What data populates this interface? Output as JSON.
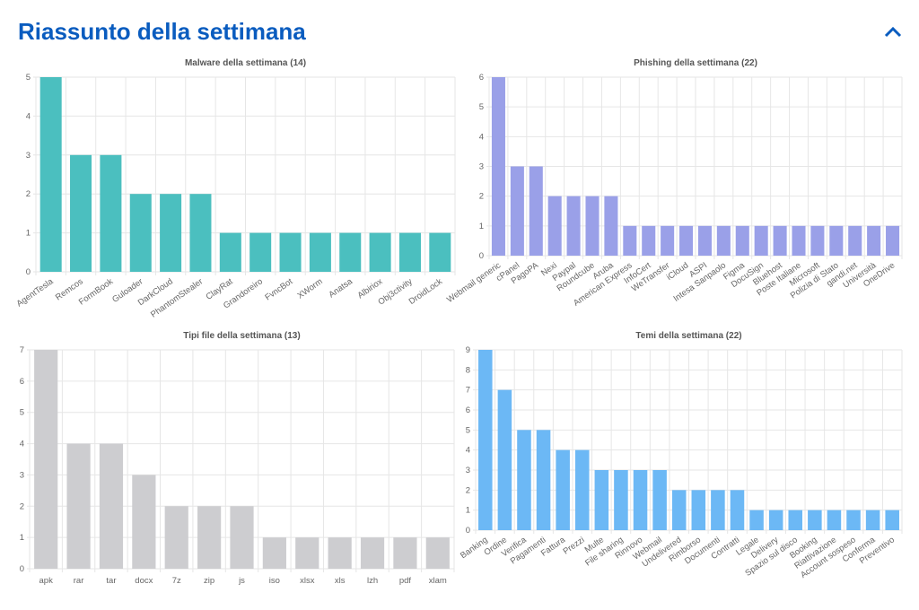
{
  "header": {
    "title": "Riassunto della settimana"
  },
  "chart_data": [
    {
      "type": "bar",
      "title": "Malware della settimana (14)",
      "color": "#4bbfbf",
      "categories": [
        "AgentTesla",
        "Remcos",
        "FormBook",
        "Guloader",
        "DarkCloud",
        "PhantomStealer",
        "ClayRat",
        "Grandoreiro",
        "FvncBot",
        "XWorm",
        "Anatsa",
        "Albiriox",
        "Obj3ctivity",
        "DroidLock"
      ],
      "values": [
        5,
        3,
        3,
        2,
        2,
        2,
        1,
        1,
        1,
        1,
        1,
        1,
        1,
        1
      ],
      "ylim": [
        0,
        5
      ],
      "yticks": [
        0,
        1,
        2,
        3,
        4,
        5
      ],
      "grid": true
    },
    {
      "type": "bar",
      "title": "Phishing della settimana (22)",
      "color": "#9aa0e8",
      "categories": [
        "Webmail generic",
        "cPanel",
        "PagoPA",
        "Nexi",
        "Paypal",
        "Roundcube",
        "Aruba",
        "American Express",
        "InfoCert",
        "WeTransfer",
        "iCloud",
        "ASPI",
        "Intesa Sanpaolo",
        "Figma",
        "DocuSign",
        "Bluehost",
        "Poste Italiane",
        "Microsoft",
        "Polizia di Stato",
        "gandi.net",
        "Università",
        "OneDrive"
      ],
      "values": [
        6,
        3,
        3,
        2,
        2,
        2,
        2,
        1,
        1,
        1,
        1,
        1,
        1,
        1,
        1,
        1,
        1,
        1,
        1,
        1,
        1,
        1
      ],
      "ylim": [
        0,
        6
      ],
      "yticks": [
        0,
        1,
        2,
        3,
        4,
        5,
        6
      ],
      "grid": true
    },
    {
      "type": "bar",
      "title": "Tipi file della settimana (13)",
      "color": "#cdcdd0",
      "categories": [
        "apk",
        "rar",
        "tar",
        "docx",
        "7z",
        "zip",
        "js",
        "iso",
        "xlsx",
        "xls",
        "lzh",
        "pdf",
        "xlam"
      ],
      "values": [
        7,
        4,
        4,
        3,
        2,
        2,
        2,
        1,
        1,
        1,
        1,
        1,
        1
      ],
      "ylim": [
        0,
        7
      ],
      "yticks": [
        0,
        1,
        2,
        3,
        4,
        5,
        6,
        7
      ],
      "grid": true
    },
    {
      "type": "bar",
      "title": "Temi della settimana (22)",
      "color": "#6cb8f5",
      "categories": [
        "Banking",
        "Ordine",
        "Verifica",
        "Pagamenti",
        "Fattura",
        "Prezzi",
        "Multe",
        "File sharing",
        "Rinnovo",
        "Webmail",
        "Undelivered",
        "Rimborso",
        "Documenti",
        "Contratti",
        "Legale",
        "Delivery",
        "Spazio sul disco",
        "Booking",
        "Riattivazione",
        "Account sospeso",
        "Conferma",
        "Preventivo"
      ],
      "values": [
        9,
        7,
        5,
        5,
        4,
        4,
        3,
        3,
        3,
        3,
        2,
        2,
        2,
        2,
        1,
        1,
        1,
        1,
        1,
        1,
        1,
        1
      ],
      "ylim": [
        0,
        9
      ],
      "yticks": [
        0,
        1,
        2,
        3,
        4,
        5,
        6,
        7,
        8,
        9
      ],
      "grid": true
    }
  ]
}
